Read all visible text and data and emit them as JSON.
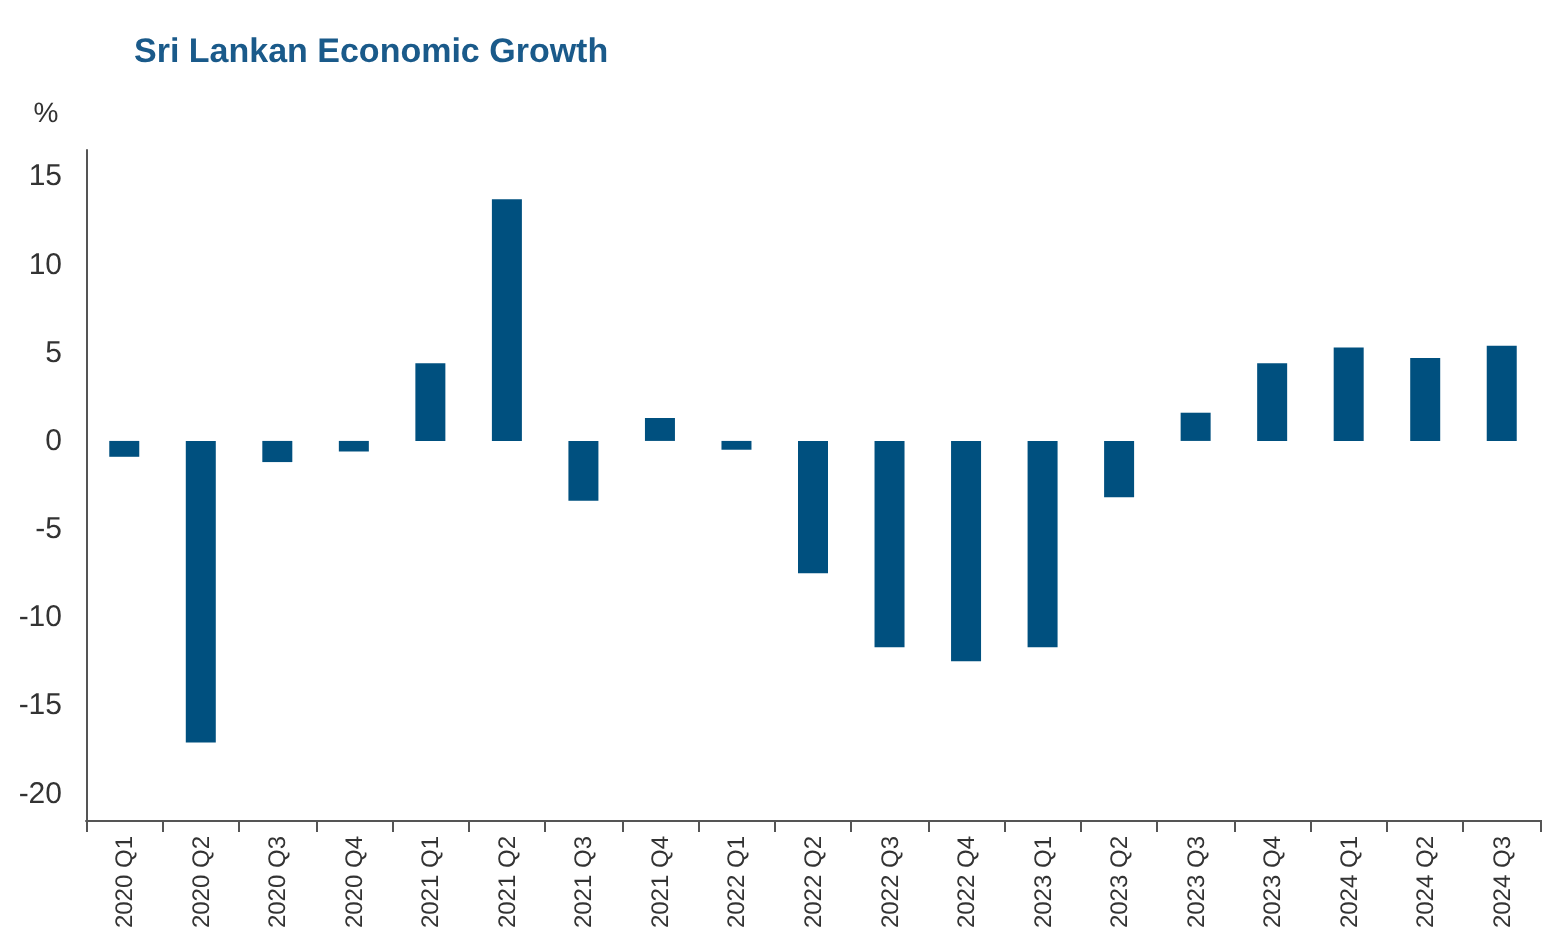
{
  "chart_data": {
    "type": "bar",
    "title": "Sri Lankan Economic Growth",
    "ylabel": "%",
    "categories": [
      "2020 Q1",
      "2020 Q2",
      "2020 Q3",
      "2020 Q4",
      "2021 Q1",
      "2021 Q2",
      "2021 Q3",
      "2021 Q4",
      "2022 Q1",
      "2022 Q2",
      "2022 Q3",
      "2022 Q4",
      "2023 Q1",
      "2023 Q2",
      "2023 Q3",
      "2023 Q4",
      "2024 Q1",
      "2024 Q2",
      "2024 Q3"
    ],
    "values": [
      -0.9,
      -17.1,
      -1.2,
      -0.6,
      4.4,
      13.7,
      -3.4,
      1.3,
      -0.5,
      -7.5,
      -11.7,
      -12.5,
      -11.7,
      -3.2,
      1.6,
      4.4,
      5.3,
      4.7,
      5.4
    ],
    "color": "#00507f",
    "ylim": [
      -21.5,
      16.5
    ],
    "yticks": [
      -20,
      -15,
      -10,
      -5,
      0,
      5,
      10,
      15
    ],
    "grid": false
  }
}
